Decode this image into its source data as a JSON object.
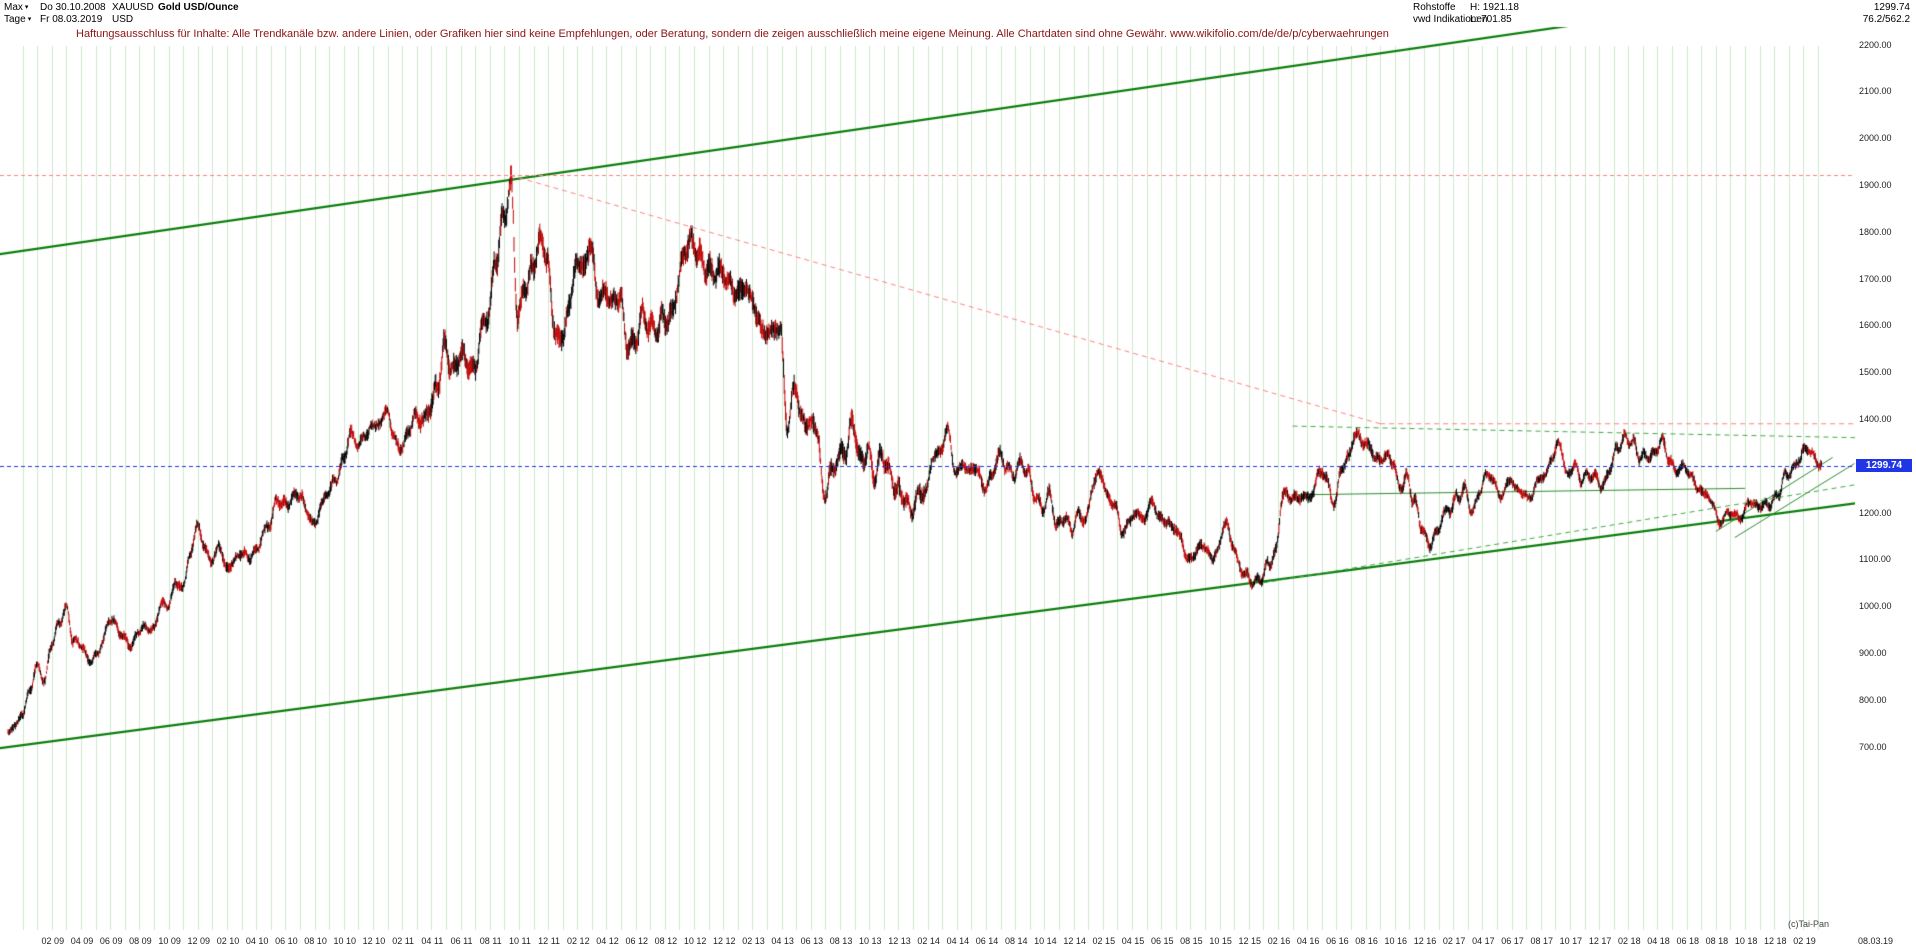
{
  "header": {
    "range_selector": "Max",
    "start_date": "Do 30.10.2008",
    "symbol": "XAUUSD",
    "instrument": "Gold USD/Ounce",
    "timeframe_selector": "Tage",
    "end_date": "Fr 08.03.2019",
    "currency": "USD",
    "category": "Rohstoffe",
    "provider": "vwd Indikationen",
    "high_label": "H: 1921.18",
    "low_label": "L: 701.85",
    "last_price": "1299.74",
    "secondary_value": "76.2/562.2"
  },
  "icons": {
    "chevron_down": "▾"
  },
  "disclaimer": "Haftungsausschluss für Inhalte: Alle Trendkanäle bzw. andere Linien, oder Grafiken hier sind keine Empfehlungen, oder Beratung, sondern die zeigen ausschließlich meine eigene Meinung. Alle Chartdaten sind ohne Gewähr.  www.wikifolio.com/de/de/p/cyberwaehrungen",
  "price_tag": "1299.74",
  "copyright": "(c)Tai-Pan",
  "axes": {
    "y_ticks": [
      "2200.00",
      "2100.00",
      "2000.00",
      "1900.00",
      "1800.00",
      "1700.00",
      "1600.00",
      "1500.00",
      "1400.00",
      "1300.00",
      "1200.00",
      "1100.00",
      "1000.00",
      "900.00",
      "800.00",
      "700.00"
    ],
    "x_ticks": [
      "02 09",
      "04 09",
      "06 09",
      "08 09",
      "10 09",
      "12 09",
      "02 10",
      "04 10",
      "06 10",
      "08 10",
      "10 10",
      "12 10",
      "02 11",
      "04 11",
      "06 11",
      "08 11",
      "10 11",
      "12 11",
      "02 12",
      "04 12",
      "06 12",
      "08 12",
      "10 12",
      "12 12",
      "02 13",
      "04 13",
      "06 13",
      "08 13",
      "10 13",
      "12 13",
      "02 14",
      "04 14",
      "06 14",
      "08 14",
      "10 14",
      "12 14",
      "02 15",
      "04 15",
      "06 15",
      "08 15",
      "10 15",
      "12 15",
      "02 16",
      "04 16",
      "06 16",
      "08 16",
      "10 16",
      "12 16",
      "02 17",
      "04 17",
      "06 17",
      "08 17",
      "10 17",
      "12 17",
      "02 18",
      "04 18",
      "06 18",
      "08 18",
      "10 18",
      "12 18",
      "02 19"
    ],
    "x_end_label": "08.03.19"
  },
  "colors": {
    "grid": "#cdeacd",
    "candle_up": "#000000",
    "candle_down": "#c00000",
    "channel_green": "#0b7d0b",
    "thin_green": "#2e8b2e",
    "dashed_green": "#46a546",
    "dashed_red": "#ff8080",
    "last_price_blue": "#2433e0",
    "tag_bg": "#1f35e6",
    "disclaimer_red": "#8b1414"
  },
  "chart_data": {
    "type": "candlestick",
    "title": "Gold USD/Ounce (XAUUSD), daily, 30.10.2008 - 08.03.2019",
    "symbol": "XAUUSD",
    "currency": "USD",
    "timeframe": "Tage",
    "range": "Max",
    "high_all_time": 1921.18,
    "low_all_time": 701.85,
    "last_price": 1299.74,
    "y_axis": {
      "min": 700,
      "max": 2200,
      "step": 100,
      "unit": "USD"
    },
    "x_axis": {
      "start": "2008-10-30",
      "end": "2019-03-08",
      "tick_interval": "2 months"
    },
    "grid": "vertical monthly light green",
    "anchor_interval": "semi-monthly",
    "anchors_usd": [
      730,
      745,
      770,
      820,
      875,
      840,
      920,
      965,
      995,
      925,
      920,
      885,
      890,
      925,
      975,
      955,
      930,
      915,
      950,
      955,
      950,
      1005,
      1000,
      1050,
      1040,
      1110,
      1175,
      1125,
      1095,
      1130,
      1080,
      1095,
      1115,
      1105,
      1115,
      1155,
      1180,
      1230,
      1215,
      1230,
      1242,
      1205,
      1170,
      1215,
      1248,
      1270,
      1310,
      1370,
      1345,
      1365,
      1385,
      1390,
      1420,
      1360,
      1335,
      1375,
      1410,
      1395,
      1430,
      1475,
      1560,
      1500,
      1535,
      1525,
      1500,
      1590,
      1630,
      1745,
      1825,
      1900,
      1620,
      1680,
      1720,
      1780,
      1745,
      1590,
      1565,
      1640,
      1735,
      1725,
      1770,
      1660,
      1670,
      1650,
      1665,
      1560,
      1560,
      1620,
      1600,
      1590,
      1615,
      1615,
      1690,
      1770,
      1775,
      1745,
      1720,
      1715,
      1715,
      1695,
      1665,
      1680,
      1660,
      1610,
      1580,
      1590,
      1595,
      1380,
      1475,
      1395,
      1390,
      1385,
      1235,
      1285,
      1320,
      1335,
      1395,
      1310,
      1330,
      1280,
      1325,
      1285,
      1250,
      1235,
      1200,
      1240,
      1245,
      1320,
      1330,
      1380,
      1285,
      1300,
      1290,
      1295,
      1250,
      1275,
      1325,
      1300,
      1280,
      1305,
      1285,
      1235,
      1210,
      1240,
      1170,
      1190,
      1165,
      1195,
      1185,
      1265,
      1285,
      1230,
      1215,
      1155,
      1185,
      1200,
      1185,
      1225,
      1190,
      1180,
      1170,
      1145,
      1095,
      1115,
      1135,
      1105,
      1115,
      1180,
      1140,
      1085,
      1065,
      1050,
      1060,
      1090,
      1115,
      1240,
      1235,
      1230,
      1235,
      1235,
      1290,
      1275,
      1215,
      1290,
      1320,
      1370,
      1350,
      1340,
      1310,
      1320,
      1315,
      1255,
      1275,
      1225,
      1175,
      1130,
      1150,
      1195,
      1210,
      1235,
      1250,
      1200,
      1245,
      1285,
      1265,
      1230,
      1270,
      1255,
      1240,
      1230,
      1270,
      1280,
      1320,
      1350,
      1280,
      1300,
      1270,
      1280,
      1275,
      1255,
      1300,
      1340,
      1360,
      1350,
      1320,
      1320,
      1325,
      1355,
      1315,
      1290,
      1300,
      1280,
      1250,
      1240,
      1220,
      1175,
      1200,
      1195,
      1190,
      1225,
      1215,
      1215,
      1220,
      1240,
      1280,
      1290,
      1320,
      1340,
      1315,
      1299.74
    ],
    "levels": {
      "ath_line": 1921.18,
      "last_line": 1299.74
    },
    "trend_lines": [
      {
        "name": "channel-top",
        "style": "solid",
        "color": "#0b7d0b",
        "width": 2.2,
        "from": {
          "m": -0.6,
          "p": 1752
        },
        "to": {
          "m": 128.5,
          "p": 2338
        }
      },
      {
        "name": "channel-bottom",
        "style": "solid",
        "color": "#0b7d0b",
        "width": 2.2,
        "from": {
          "m": -0.6,
          "p": 697
        },
        "to": {
          "m": 128.5,
          "p": 1228
        }
      },
      {
        "name": "downtrend-from-ath",
        "style": "dashed",
        "color": "#ff8080",
        "width": 1,
        "from": {
          "m": 34.4,
          "p": 1921
        },
        "to": {
          "m": 94,
          "p": 1390
        }
      },
      {
        "name": "resistance-1390-red",
        "style": "dashed",
        "color": "#ff8080",
        "width": 1,
        "from": {
          "m": 94,
          "p": 1390
        },
        "to": {
          "m": 127,
          "p": 1390
        }
      },
      {
        "name": "resistance-1385-green",
        "style": "dashed",
        "color": "#46a546",
        "width": 1,
        "from": {
          "m": 88,
          "p": 1385
        },
        "to": {
          "m": 127,
          "p": 1360
        }
      },
      {
        "name": "rising-support",
        "style": "dashed",
        "color": "#46a546",
        "width": 1,
        "from": {
          "m": 86,
          "p": 1050
        },
        "to": {
          "m": 127,
          "p": 1262
        }
      },
      {
        "name": "mid-resistance",
        "style": "solid",
        "color": "#2e8b2e",
        "width": 1,
        "from": {
          "m": 88,
          "p": 1238
        },
        "to": {
          "m": 119,
          "p": 1252
        }
      },
      {
        "name": "wedge-upper",
        "style": "solid",
        "color": "#2e8b2e",
        "width": 1,
        "from": {
          "m": 117,
          "p": 1160
        },
        "to": {
          "m": 125,
          "p": 1318
        }
      },
      {
        "name": "wedge-lower",
        "style": "solid",
        "color": "#2e8b2e",
        "width": 1,
        "from": {
          "m": 118.3,
          "p": 1147
        },
        "to": {
          "m": 126.5,
          "p": 1305
        }
      }
    ]
  }
}
